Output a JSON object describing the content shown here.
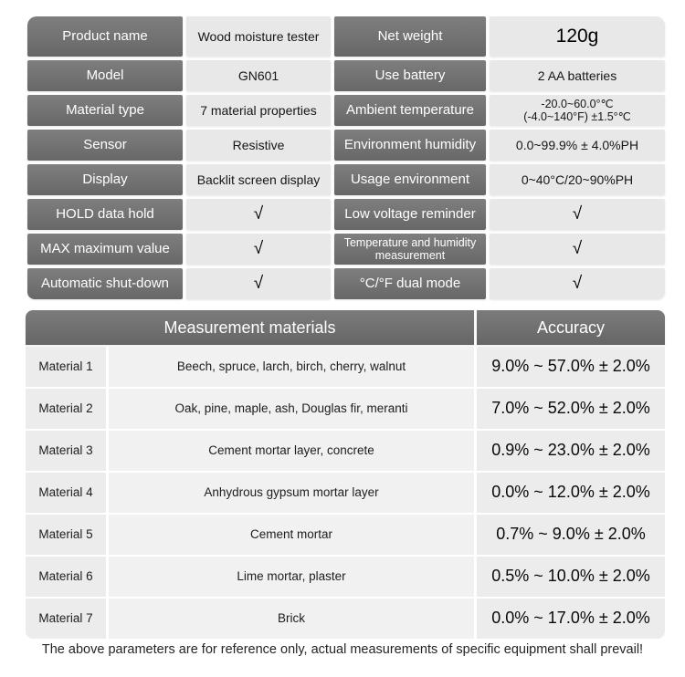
{
  "colors": {
    "header_dark": "#717171",
    "cell_light": "#e8e8e8",
    "body_light": "#f1f1f1",
    "background": "#ffffff"
  },
  "spec": {
    "rows": [
      {
        "left_label": "Product name",
        "left_value": "Wood moisture tester",
        "right_label": "Net weight",
        "right_value": "120g"
      },
      {
        "left_label": "Model",
        "left_value": "GN601",
        "right_label": "Use battery",
        "right_value": "2 AA batteries"
      },
      {
        "left_label": "Material type",
        "left_value": "7 material properties",
        "right_label": "Ambient temperature",
        "right_value": "-20.0~60.0°℃\n(-4.0~140°F) ±1.5°℃"
      },
      {
        "left_label": "Sensor",
        "left_value": "Resistive",
        "right_label": "Environment humidity",
        "right_value": "0.0~99.9% ± 4.0%PH"
      },
      {
        "left_label": "Display",
        "left_value": "Backlit screen display",
        "right_label": "Usage environment",
        "right_value": "0~40°C/20~90%PH"
      },
      {
        "left_label": "HOLD data hold",
        "left_value": "√",
        "right_label": "Low voltage reminder",
        "right_value": "√"
      },
      {
        "left_label": "MAX maximum value",
        "left_value": "√",
        "right_label": "Temperature and humidity measurement",
        "right_value": "√"
      },
      {
        "left_label": "Automatic shut-down",
        "left_value": "√",
        "right_label": "°C/°F dual mode",
        "right_value": "√"
      }
    ]
  },
  "materials": {
    "header": {
      "materials_label": "Measurement materials",
      "accuracy_label": "Accuracy"
    },
    "rows": [
      {
        "label": "Material 1",
        "materials": "Beech, spruce, larch, birch, cherry, walnut",
        "accuracy": "9.0% ~ 57.0% ± 2.0%"
      },
      {
        "label": "Material 2",
        "materials": "Oak, pine, maple, ash, Douglas fir, meranti",
        "accuracy": "7.0% ~ 52.0% ± 2.0%"
      },
      {
        "label": "Material 3",
        "materials": "Cement mortar layer, concrete",
        "accuracy": "0.9% ~ 23.0% ± 2.0%"
      },
      {
        "label": "Material 4",
        "materials": "Anhydrous gypsum mortar layer",
        "accuracy": "0.0% ~ 12.0% ± 2.0%"
      },
      {
        "label": "Material 5",
        "materials": "Cement mortar",
        "accuracy": "0.7% ~ 9.0% ± 2.0%"
      },
      {
        "label": "Material 6",
        "materials": "Lime mortar, plaster",
        "accuracy": "0.5% ~ 10.0% ± 2.0%"
      },
      {
        "label": "Material 7",
        "materials": "Brick",
        "accuracy": "0.0% ~ 17.0% ± 2.0%"
      }
    ]
  },
  "footer": {
    "note": "The above parameters are for reference only, actual measurements of specific equipment shall prevail!"
  }
}
